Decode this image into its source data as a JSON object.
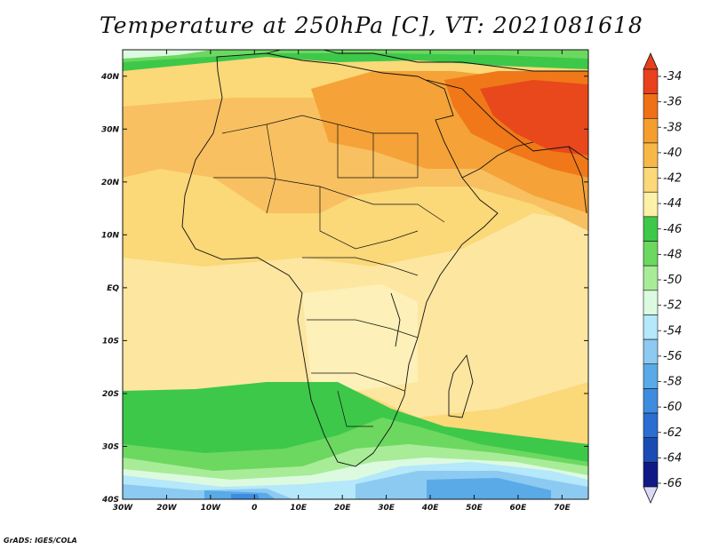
{
  "title": "Temperature at 250hPa [C], VT: 2021081618",
  "credit": "GrADS: IGES/COLA",
  "map": {
    "lon_range": [
      -30,
      76
    ],
    "lat_range": [
      -40,
      45
    ],
    "lat_ticks": [
      {
        "value": 40,
        "label": "40N"
      },
      {
        "value": 30,
        "label": "30N"
      },
      {
        "value": 20,
        "label": "20N"
      },
      {
        "value": 10,
        "label": "10N"
      },
      {
        "value": 0,
        "label": "EQ"
      },
      {
        "value": -10,
        "label": "10S"
      },
      {
        "value": -20,
        "label": "20S"
      },
      {
        "value": -30,
        "label": "30S"
      },
      {
        "value": -40,
        "label": "40S"
      }
    ],
    "lon_ticks": [
      {
        "value": -30,
        "label": "30W"
      },
      {
        "value": -20,
        "label": "20W"
      },
      {
        "value": -10,
        "label": "10W"
      },
      {
        "value": 0,
        "label": "0"
      },
      {
        "value": 10,
        "label": "10E"
      },
      {
        "value": 20,
        "label": "20E"
      },
      {
        "value": 30,
        "label": "30E"
      },
      {
        "value": 40,
        "label": "40E"
      },
      {
        "value": 50,
        "label": "50E"
      },
      {
        "value": 60,
        "label": "60E"
      },
      {
        "value": 70,
        "label": "70E"
      }
    ]
  },
  "colorbar": {
    "labels": [
      "-34",
      "-36",
      "-38",
      "-40",
      "-42",
      "-44",
      "-46",
      "-48",
      "-50",
      "-52",
      "-54",
      "-56",
      "-58",
      "-60",
      "-62",
      "-64",
      "-66"
    ],
    "colors": [
      "#e8401c",
      "#f07018",
      "#f59e2e",
      "#f8b848",
      "#fbd878",
      "#fdf0a8",
      "#3dc84a",
      "#6cd860",
      "#a8ec98",
      "#dcfae0",
      "#b4e8fa",
      "#8ccaf2",
      "#5aaae8",
      "#3e8ce0",
      "#2a6ed2",
      "#1a4cb4",
      "#101a86"
    ]
  }
}
